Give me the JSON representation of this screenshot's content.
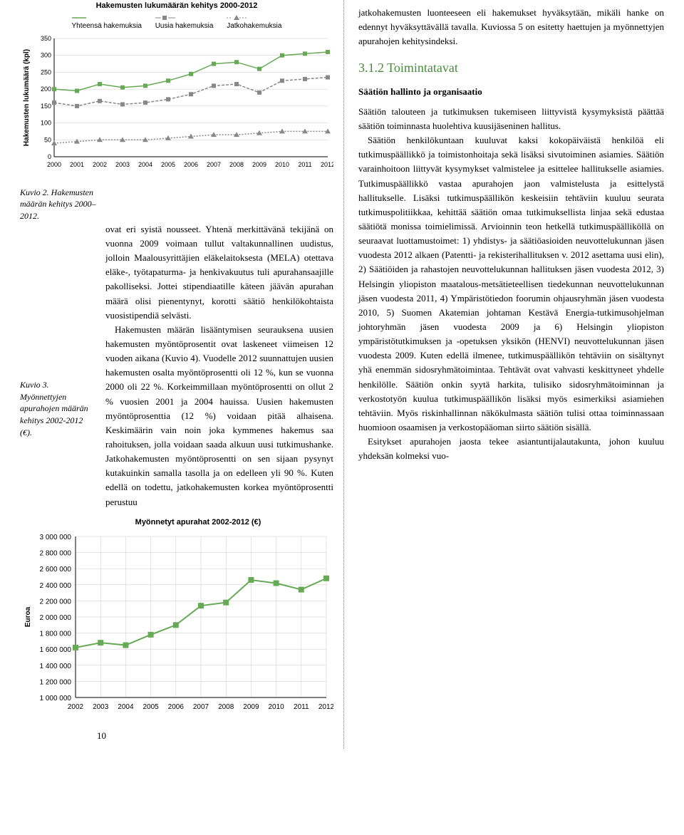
{
  "chart1": {
    "type": "line",
    "title": "Hakemusten lukumäärän kehitys 2000-2012",
    "ylabel": "Hakemusten lukumäärä (kpl)",
    "ylabel_fontsize": 10,
    "title_fontsize": 11,
    "legend": [
      "Yhteensä hakemuksia",
      "Uusia hakemuksia",
      "Jatkohakemuksia"
    ],
    "legend_fontsize": 10,
    "years": [
      2000,
      2001,
      2002,
      2003,
      2004,
      2005,
      2006,
      2007,
      2008,
      2009,
      2010,
      2011,
      2012
    ],
    "series": [
      {
        "name": "Yhteensä hakemuksia",
        "marker": "square",
        "color": "#66aa55",
        "values": [
          200,
          195,
          215,
          205,
          210,
          225,
          245,
          275,
          280,
          260,
          300,
          305,
          310
        ]
      },
      {
        "name": "Uusia hakemuksia",
        "marker": "square",
        "color": "#888888",
        "dash": "4,2",
        "values": [
          160,
          150,
          165,
          155,
          160,
          170,
          185,
          210,
          215,
          190,
          225,
          230,
          235
        ]
      },
      {
        "name": "Jatkohakemuksia",
        "marker": "triangle",
        "color": "#888888",
        "dash": "2,2",
        "values": [
          40,
          45,
          50,
          50,
          50,
          55,
          60,
          65,
          65,
          70,
          75,
          75,
          75
        ]
      }
    ],
    "ylim": [
      0,
      350
    ],
    "ytick_step": 50,
    "grid_color": "#cccccc",
    "background_color": "#ffffff",
    "axis_color": "#000000",
    "tick_fontsize": 9
  },
  "chart2": {
    "type": "line",
    "title": "Myönnetyt apurahat 2002-2012 (€)",
    "ylabel": "Euroa",
    "title_fontsize": 11,
    "years": [
      2002,
      2003,
      2004,
      2005,
      2006,
      2007,
      2008,
      2009,
      2010,
      2011,
      2012
    ],
    "series": [
      {
        "name": "Myönnetyt",
        "marker": "square",
        "color": "#66aa55",
        "values": [
          1620000,
          1680000,
          1650000,
          1780000,
          1900000,
          2140000,
          2180000,
          2460000,
          2420000,
          2340000,
          2480000
        ]
      }
    ],
    "ylim": [
      1000000,
      3000000
    ],
    "ytick_step": 200000,
    "grid_color": "#cccccc",
    "background_color": "#ffffff",
    "axis_color": "#000000",
    "tick_fontsize": 10,
    "label_fontsize": 10
  },
  "captions": {
    "kuvio2": "Kuvio 2. Hakemusten määrän kehitys 2000–2012.",
    "kuvio3": "Kuvio 3. Myönnettyjen apurahojen määrän kehitys 2002-2012 (€)."
  },
  "left_text": {
    "p1": "ovat eri syistä nousseet. Yhtenä merkittävänä tekijänä on vuonna 2009 voimaan tullut valtakunnallinen uudistus, jolloin Maalousyrittäjien eläkelaitoksesta (MELA) otettava eläke-, työtapaturma- ja henkivakuutus tuli apurahansaajille pakolliseksi. Jottei stipendiaatille käteen jäävän apurahan määrä olisi pienentynyt, korotti säätiö henkilökohtaista vuosistipendiä selvästi.",
    "p2": "Hakemusten määrän lisääntymisen seurauksena uusien hakemusten myöntöprosentit ovat laskeneet viimeisen 12 vuoden aikana (Kuvio 4). Vuodelle 2012 suunnattujen uusien hakemusten osalta myöntöprosentti oli 12 %, kun se vuonna 2000 oli 22 %. Korkeimmillaan myöntöprosentti on ollut 2 % vuosien 2001 ja 2004 hauissa. Uusien hakemusten myöntöprosenttia (12 %) voidaan pitää alhaisena. Keskimäärin vain noin joka kymmenes hakemus saa rahoituksen, jolla voidaan saada alkuun uusi tutkimushanke. Jatkohakemusten myöntöprosentti on sen sijaan pysynyt kutakuinkin samalla tasolla ja on edelleen yli 90 %. Kuten edellä on todettu, jatkohakemusten korkea myöntöprosentti perustuu"
  },
  "right_text": {
    "intro": "jatkohakemusten luonteeseen eli hakemukset hyväksytään, mikäli hanke on edennyt hyväksyttävällä tavalla. Kuviossa 5 on esitetty haettujen ja myönnettyjen apurahojen kehitysindeksi.",
    "section_title": "3.1.2 Toimintatavat",
    "sub": "Säätiön hallinto ja organisaatio",
    "body": "Säätiön talouteen ja tutkimuksen tukemiseen liittyvistä kysymyksistä päättää säätiön toiminnasta huolehtiva kuusijäseninen hallitus.\nSäätiön henkilökuntaan kuuluvat kaksi kokopäiväistä henkilöä eli tutkimuspäällikkö ja toimistonhoitaja sekä lisäksi sivutoiminen asiamies. Säätiön varainhoitoon liittyvät kysymykset valmistelee ja esittelee hallitukselle asiamies. Tutkimuspäällikkö vastaa apurahojen jaon valmistelusta ja esittelystä hallitukselle. Lisäksi tutkimuspäällikön keskeisiin tehtäviin kuuluu seurata tutkimuspolitiikkaa, kehittää säätiön omaa tutkimuksellista linjaa sekä edustaa säätiötä monissa toimielimissä. Arvioinnin teon hetkellä tutkimuspäälliköllä on seuraavat luottamustoimet: 1) yhdistys- ja säätiöasioiden neuvottelukunnan jäsen vuodesta 2012 alkaen (Patentti- ja rekisterihallituksen v. 2012 asettama uusi elin), 2) Säätiöiden ja rahastojen neuvottelukunnan hallituksen jäsen vuodesta 2012, 3) Helsingin yliopiston maatalous-metsätieteellisen tiedekunnan neuvottelukunnan jäsen vuodesta 2011, 4) Ympäristötiedon foorumin ohjausryhmän jäsen vuodesta 2010, 5) Suomen Akatemian johtaman Kestävä Energia-tutkimusohjelman johtoryhmän jäsen vuodesta 2009 ja 6) Helsingin yliopiston ympäristötutkimuksen ja -opetuksen yksikön (HENVI) neuvottelukunnan jäsen vuodesta 2009. Kuten edellä ilmenee, tutkimuspäällikön tehtäviin on sisältynyt yhä enemmän sidosryhmätoimintaa. Tehtävät ovat vahvasti keskittyneet yhdelle henkilölle. Säätiön onkin syytä harkita, tulisiko sidosryhmätoiminnan ja verkostotyön kuulua tutkimuspäällikön lisäksi myös esimerkiksi asiamiehen tehtäviin. Myös riskinhallinnan näkökulmasta säätiön tulisi ottaa toiminnassaan huomioon osaamisen ja verkostopääoman siirto säätiön sisällä.\nEsitykset apurahojen jaosta tekee asiantuntijalautakunta, johon kuuluu yhdeksän kolmeksi vuo-"
  },
  "page_number": "10"
}
